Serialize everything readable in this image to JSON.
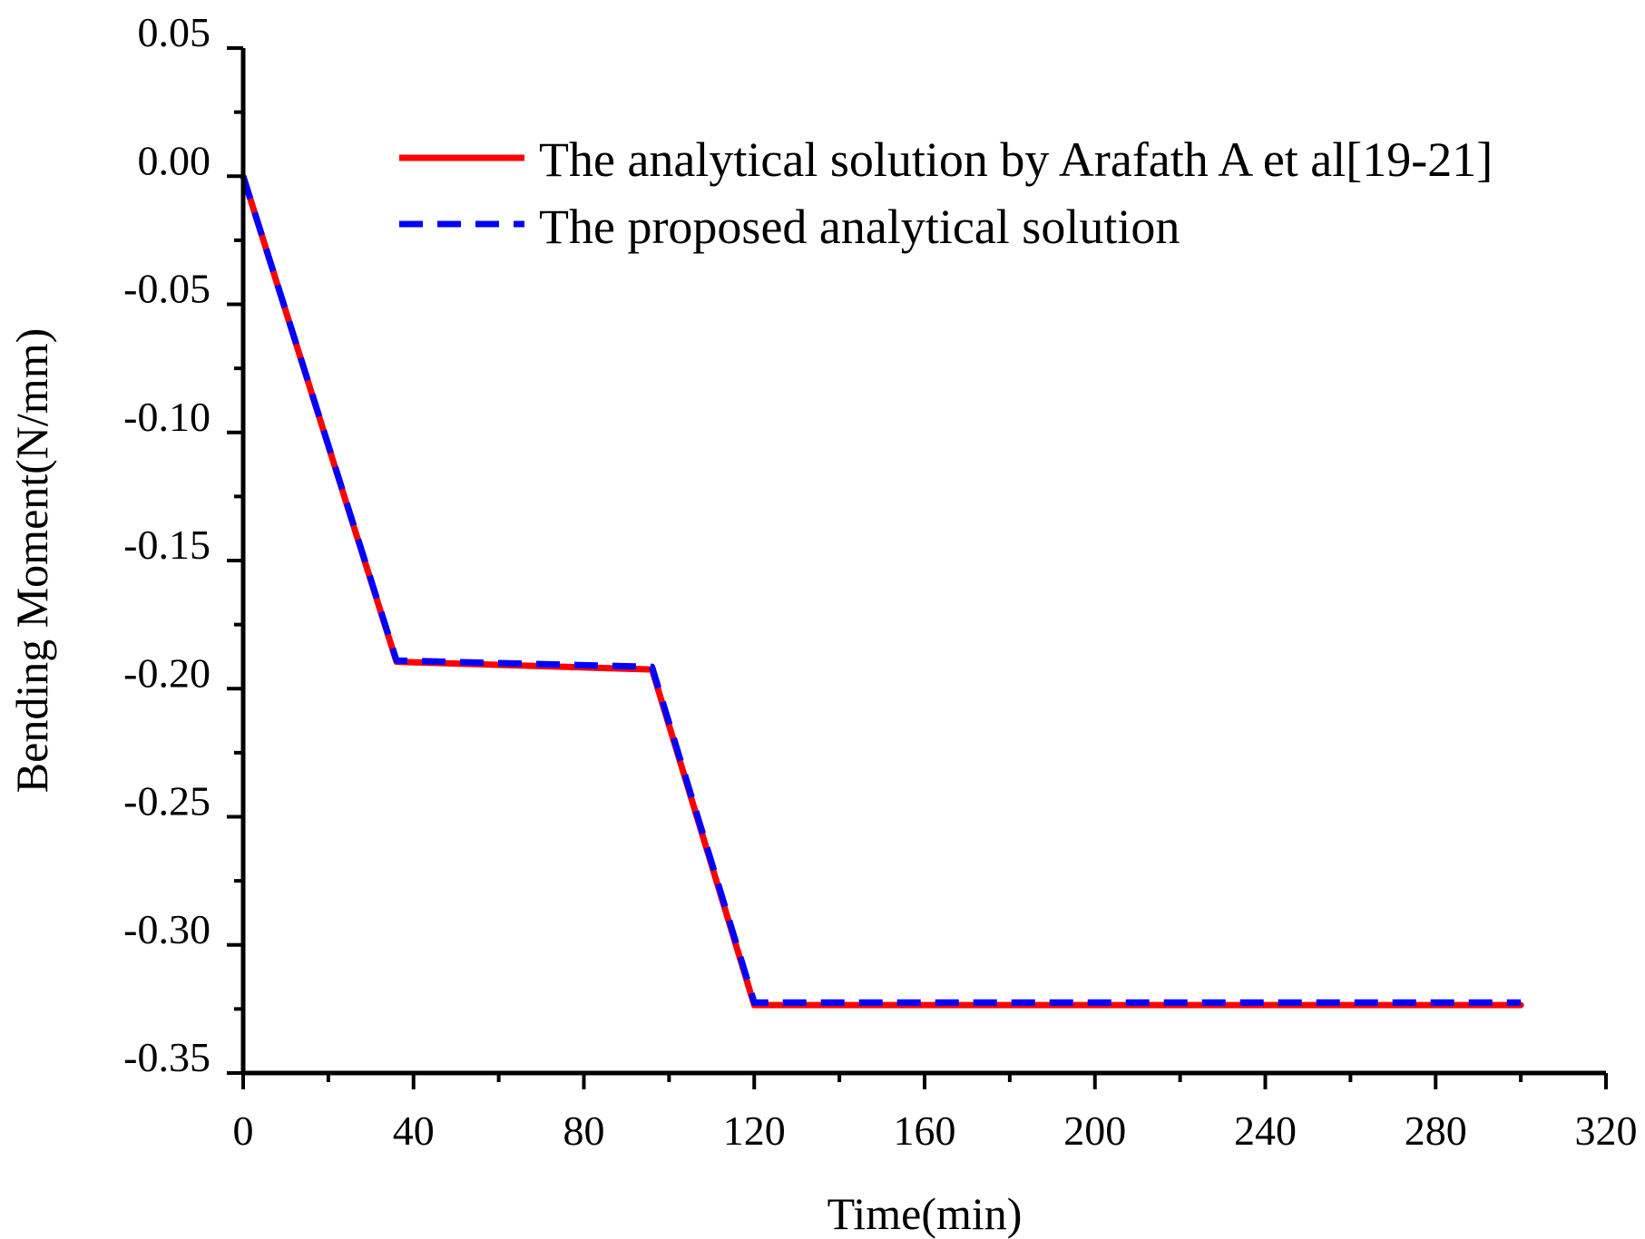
{
  "chart_data": {
    "type": "line",
    "title": "",
    "xlabel": "Time(min)",
    "ylabel": "Bending Moment(N/mm)",
    "xlim": [
      0,
      320
    ],
    "ylim": [
      -0.35,
      0.05
    ],
    "xticks": [
      0,
      40,
      80,
      120,
      160,
      200,
      240,
      280,
      320
    ],
    "xtick_labels": [
      "0",
      "40",
      "80",
      "120",
      "160",
      "200",
      "240",
      "280",
      "320"
    ],
    "yticks": [
      0.05,
      0.0,
      -0.05,
      -0.1,
      -0.15,
      -0.2,
      -0.25,
      -0.3,
      -0.35
    ],
    "ytick_labels": [
      "0.05",
      "0.00",
      "-0.05",
      "-0.10",
      "-0.15",
      "-0.20",
      "-0.25",
      "-0.30",
      "-0.35"
    ],
    "grid": false,
    "legend_position": "top-right",
    "series": [
      {
        "name": "The analytical solution by Arafath A et al[19-21]",
        "color": "#ff0000",
        "style": "solid",
        "x": [
          0,
          36,
          96,
          120,
          300
        ],
        "y": [
          0.0,
          -0.1895,
          -0.1925,
          -0.3235,
          -0.3235
        ]
      },
      {
        "name": "The proposed analytical solution",
        "color": "#0000ff",
        "style": "dashed",
        "x": [
          0,
          36,
          96,
          120,
          300
        ],
        "y": [
          0.0,
          -0.189,
          -0.1915,
          -0.3225,
          -0.3225
        ]
      }
    ]
  }
}
